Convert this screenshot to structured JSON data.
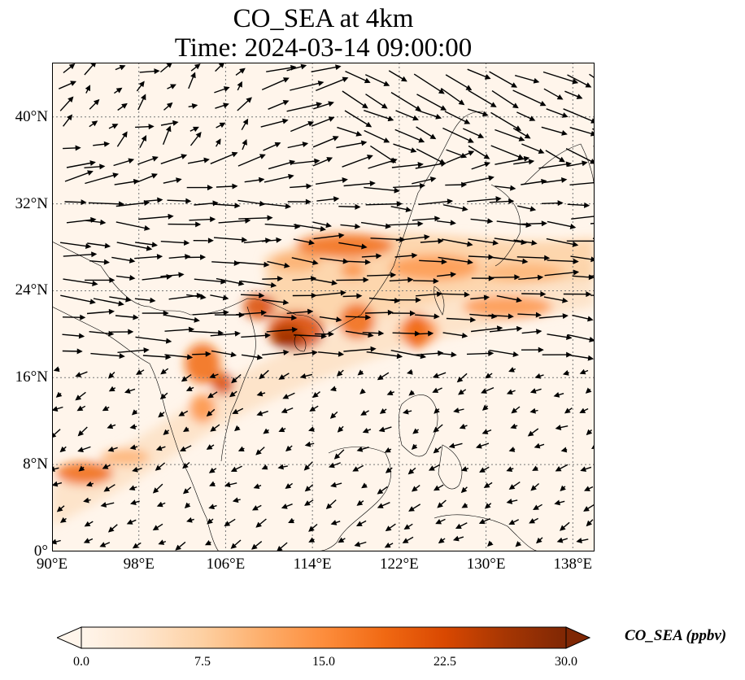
{
  "title": {
    "line1": "CO_SEA at 4km",
    "line2": "Time: 2024-03-14 09:00:00"
  },
  "map": {
    "lon_range": [
      90,
      140
    ],
    "lat_range": [
      0,
      45
    ],
    "gridlines": true,
    "x_ticks": [
      "90°E",
      "98°E",
      "106°E",
      "114°E",
      "122°E",
      "130°E",
      "138°E"
    ],
    "y_ticks": [
      "0°",
      "8°N",
      "16°N",
      "24°N",
      "32°N",
      "40°N"
    ],
    "field": "CO_SEA",
    "overlay": "wind vectors"
  },
  "colorbar": {
    "label": "CO_SEA (ppbv)",
    "ticks": [
      "0.0",
      "7.5",
      "15.0",
      "22.5",
      "30.0"
    ],
    "vmin": 0,
    "vmax": 30,
    "extend": "both",
    "colors": [
      "#fff5eb",
      "#fee6ce",
      "#fdd0a2",
      "#fdae6b",
      "#fd8d3c",
      "#f16913",
      "#d94801",
      "#a63603",
      "#7f2704"
    ]
  }
}
